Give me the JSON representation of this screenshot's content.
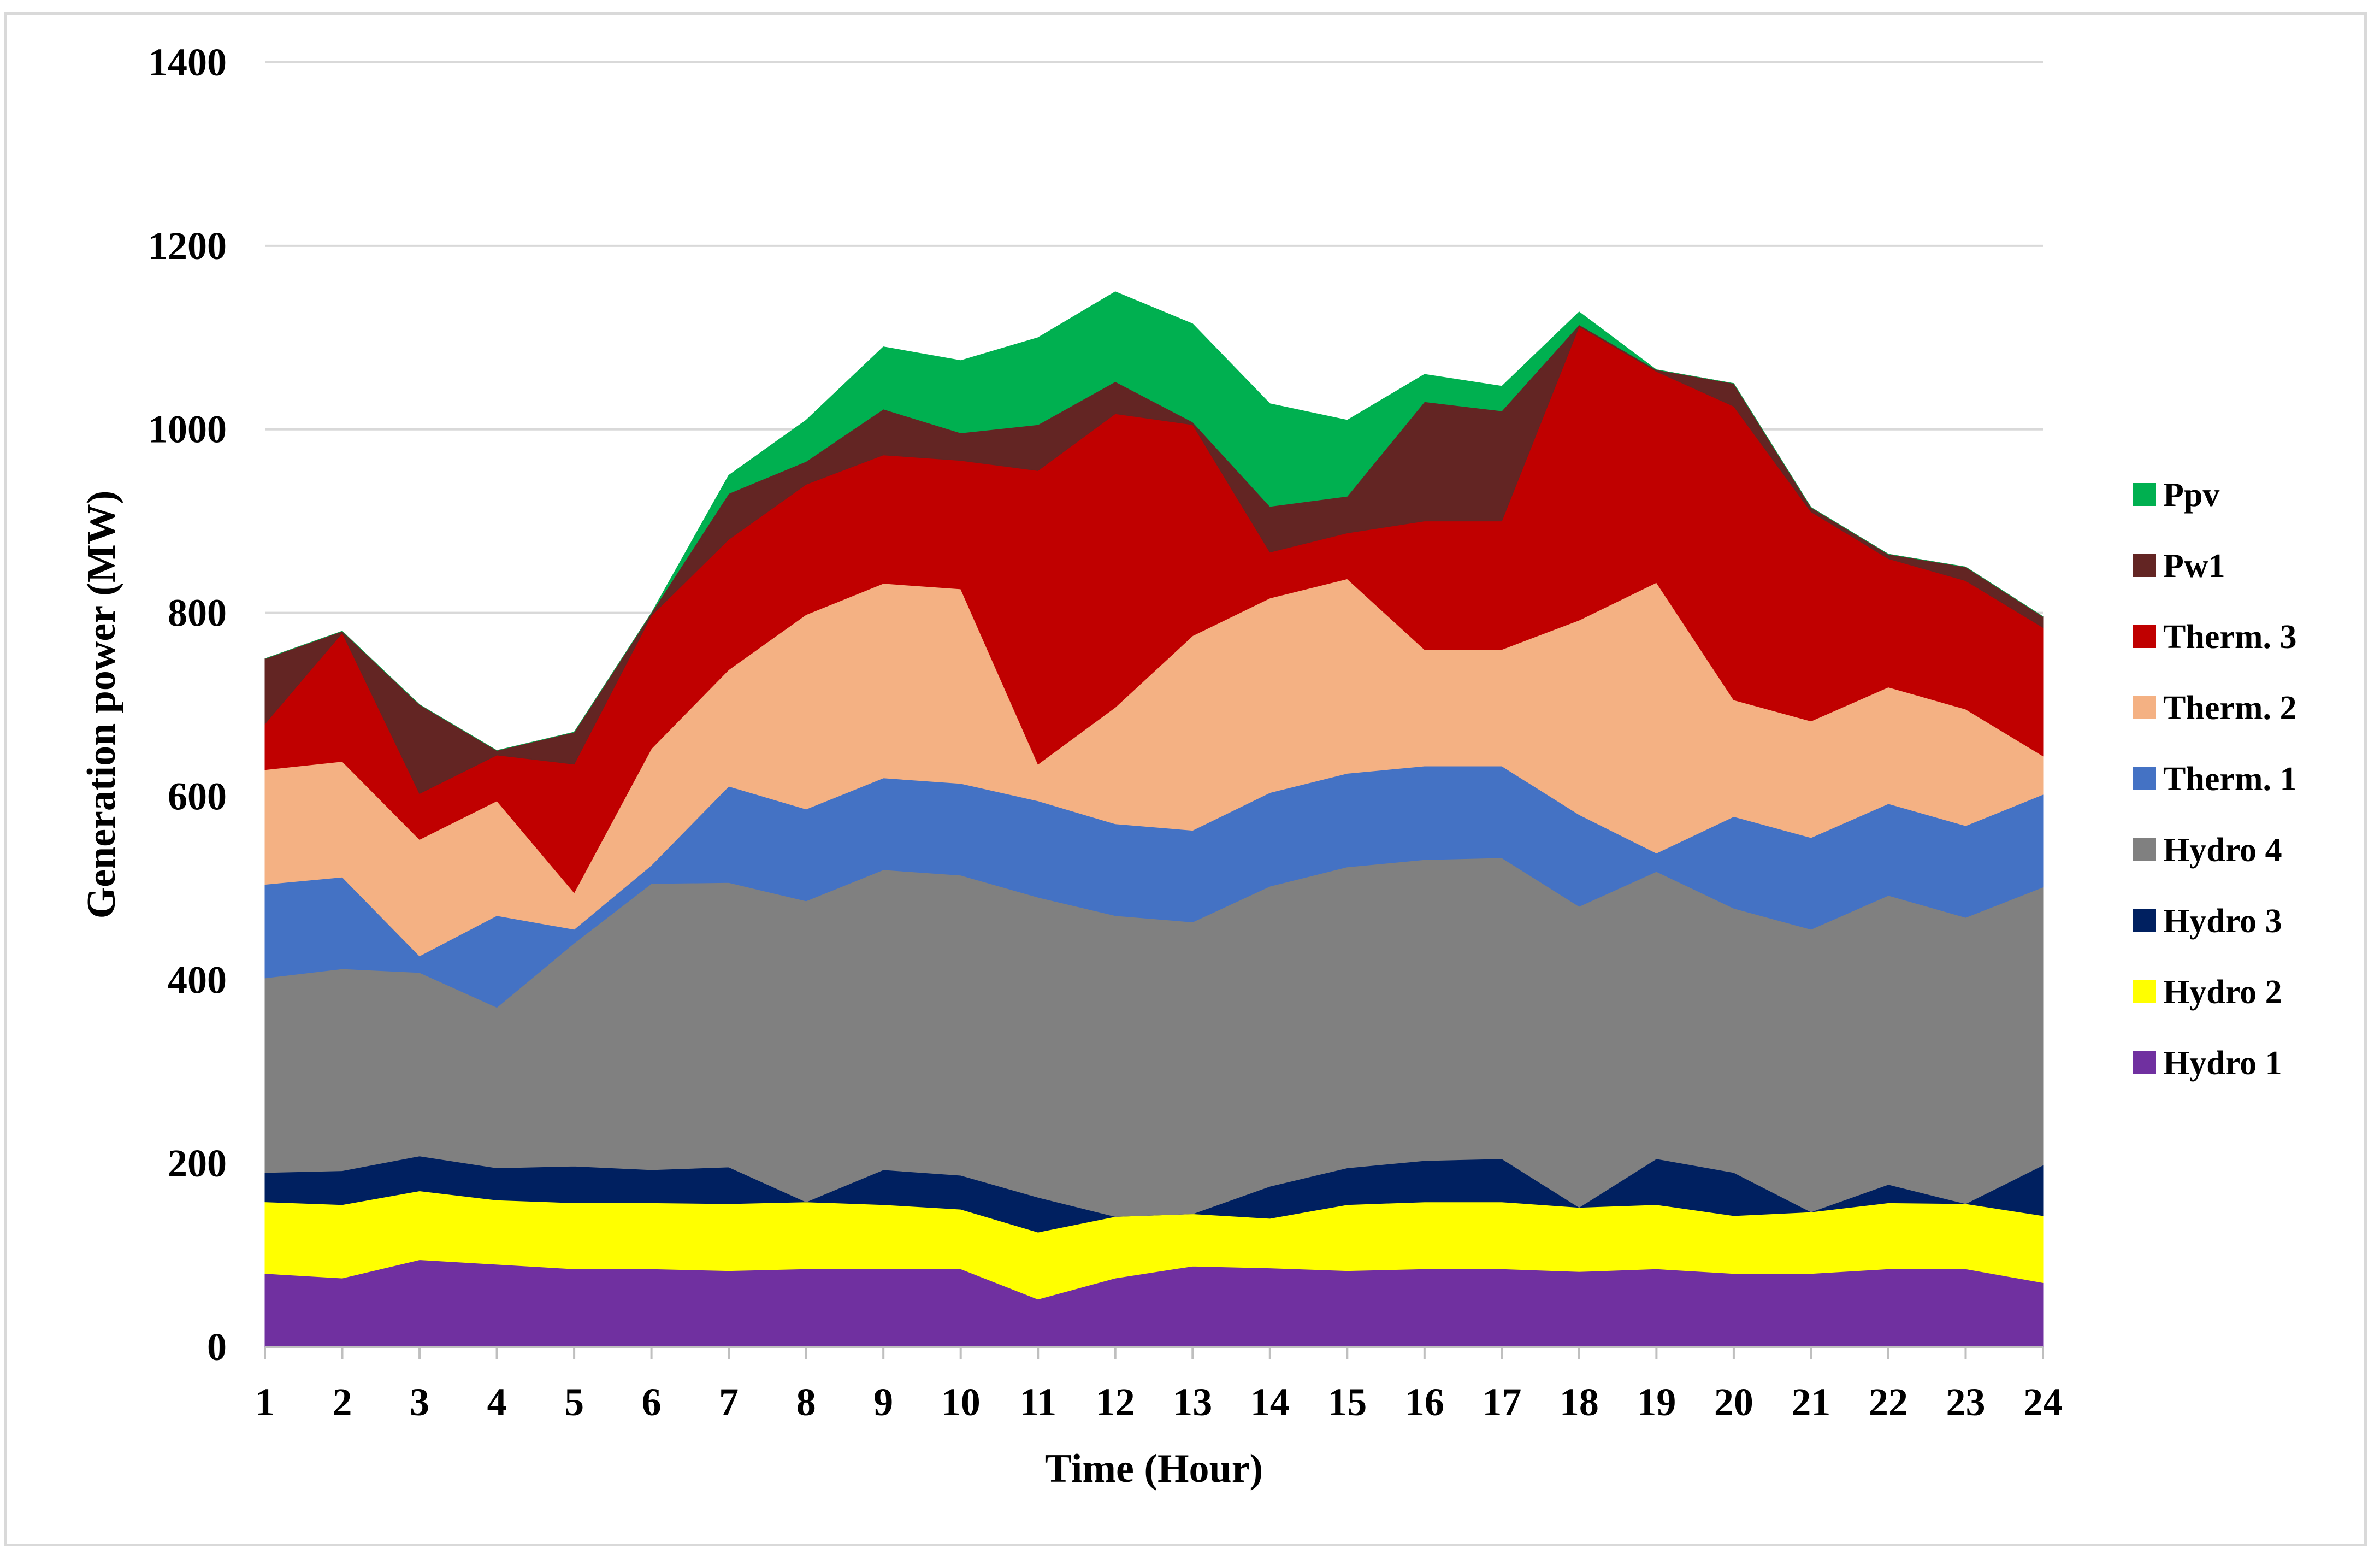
{
  "chart_data": {
    "type": "area",
    "stacked": true,
    "title": "",
    "xlabel": "Time (Hour)",
    "ylabel": "Generation power (MW)",
    "ylim": [
      0,
      1400
    ],
    "yticks": [
      0,
      200,
      400,
      600,
      800,
      1000,
      1200,
      1400
    ],
    "grid": true,
    "legend_position": "right",
    "categories": [
      "1",
      "2",
      "3",
      "4",
      "5",
      "6",
      "7",
      "8",
      "9",
      "10",
      "11",
      "12",
      "13",
      "14",
      "15",
      "16",
      "17",
      "18",
      "19",
      "20",
      "21",
      "22",
      "23",
      "24"
    ],
    "series": [
      {
        "name": "Hydro 1",
        "color": "#7030a0",
        "values": [
          80,
          75,
          95,
          90,
          85,
          85,
          83,
          85,
          85,
          85,
          52,
          75,
          88,
          86,
          83,
          85,
          85,
          82,
          85,
          80,
          80,
          85,
          85,
          70
        ]
      },
      {
        "name": "Hydro 2",
        "color": "#ffff00",
        "values": [
          78,
          80,
          75,
          70,
          72,
          72,
          73,
          73,
          70,
          65,
          73,
          67,
          57,
          54,
          72,
          73,
          73,
          70,
          70,
          63,
          67,
          72,
          71,
          73
        ]
      },
      {
        "name": "Hydro 3",
        "color": "#002060",
        "values": [
          32,
          37,
          38,
          35,
          40,
          36,
          40,
          0,
          38,
          37,
          38,
          0,
          0,
          35,
          40,
          45,
          47,
          0,
          50,
          47,
          0,
          20,
          0,
          55
        ]
      },
      {
        "name": "Hydro 4",
        "color": "#808080",
        "values": [
          212,
          220,
          200,
          175,
          243,
          312,
          310,
          328,
          327,
          327,
          327,
          328,
          318,
          327,
          328,
          328,
          328,
          328,
          313,
          288,
          308,
          315,
          312,
          303
        ]
      },
      {
        "name": "Therm. 1",
        "color": "#4472c4",
        "values": [
          102,
          100,
          18,
          100,
          15,
          20,
          105,
          100,
          100,
          100,
          105,
          100,
          100,
          102,
          102,
          102,
          100,
          100,
          20,
          100,
          100,
          100,
          100,
          101
        ]
      },
      {
        "name": "Therm. 2",
        "color": "#f4b183",
        "values": [
          125,
          126,
          127,
          125,
          40,
          127,
          127,
          212,
          212,
          212,
          40,
          127,
          212,
          212,
          212,
          127,
          127,
          212,
          295,
          127,
          127,
          127,
          127,
          42
        ]
      },
      {
        "name": "Therm. 3",
        "color": "#c00000",
        "values": [
          50,
          140,
          50,
          50,
          140,
          145,
          142,
          142,
          140,
          140,
          320,
          320,
          230,
          50,
          50,
          140,
          140,
          320,
          230,
          320,
          228,
          140,
          140,
          140
        ]
      },
      {
        "name": "Pw1",
        "color": "#632523",
        "values": [
          71,
          2,
          97,
          5,
          35,
          3,
          50,
          25,
          50,
          30,
          50,
          35,
          3,
          50,
          40,
          130,
          120,
          2,
          2,
          25,
          5,
          5,
          15,
          12
        ]
      },
      {
        "name": "Ppv",
        "color": "#00b050",
        "values": [
          0,
          0,
          0,
          0,
          0,
          0,
          20,
          45,
          68,
          79,
          95,
          98,
          107,
          112,
          83,
          30,
          27,
          14,
          0,
          0,
          0,
          0,
          0,
          0
        ]
      }
    ]
  }
}
